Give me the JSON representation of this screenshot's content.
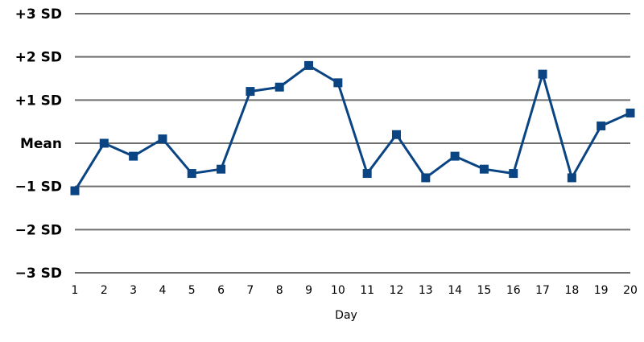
{
  "chart_data": {
    "type": "line",
    "title": "",
    "xlabel": "Day",
    "ylabel": "",
    "x": [
      1,
      2,
      3,
      4,
      5,
      6,
      7,
      8,
      9,
      10,
      11,
      12,
      13,
      14,
      15,
      16,
      17,
      18,
      19,
      20
    ],
    "series": [
      {
        "values": [
          -1.1,
          0.0,
          -0.3,
          0.1,
          -0.7,
          -0.6,
          1.2,
          1.3,
          1.8,
          1.4,
          -0.7,
          0.2,
          -0.8,
          -0.3,
          -0.6,
          -0.7,
          1.6,
          -0.8,
          0.4,
          0.7
        ],
        "color": "#0b4483",
        "marker": "square"
      }
    ],
    "xlim": [
      1,
      20
    ],
    "ylim": [
      -3,
      3
    ],
    "yticks": [
      {
        "value": 3,
        "label": "+3 SD"
      },
      {
        "value": 2,
        "label": "+2 SD"
      },
      {
        "value": 1,
        "label": "+1 SD"
      },
      {
        "value": 0,
        "label": "Mean"
      },
      {
        "value": -1,
        "label": "−1 SD"
      },
      {
        "value": -2,
        "label": "−2 SD"
      },
      {
        "value": -3,
        "label": "−3 SD"
      }
    ],
    "grid": true,
    "grid_color": "#6e6e6e"
  }
}
